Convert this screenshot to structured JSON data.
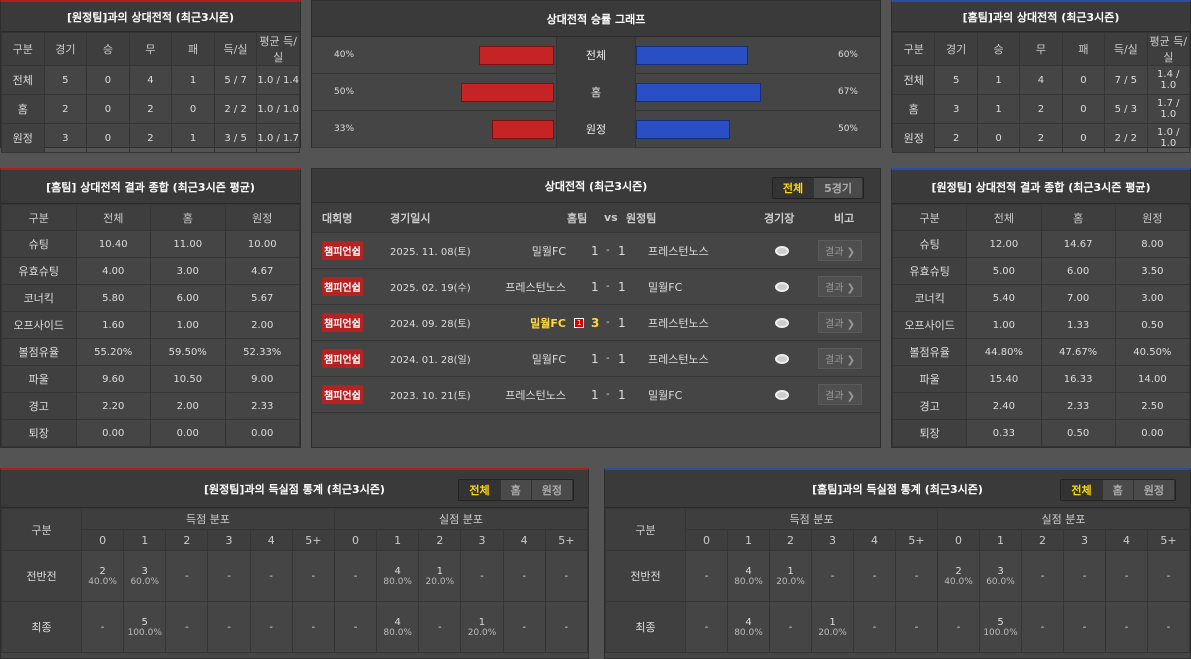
{
  "h2h_away": {
    "title": "[원정팀]과의 상대전적 (최근3시즌)",
    "headers": [
      "구분",
      "경기",
      "승",
      "무",
      "패",
      "득/실",
      "평균 득/실"
    ],
    "rows": [
      [
        "전체",
        "5",
        "0",
        "4",
        "1",
        "5 / 7",
        "1.0 / 1.4"
      ],
      [
        "홈",
        "2",
        "0",
        "2",
        "0",
        "2 / 2",
        "1.0 / 1.0"
      ],
      [
        "원정",
        "3",
        "0",
        "2",
        "1",
        "3 / 5",
        "1.0 / 1.7"
      ]
    ]
  },
  "h2h_home": {
    "title": "[홈팀]과의 상대전적 (최근3시즌)",
    "headers": [
      "구분",
      "경기",
      "승",
      "무",
      "패",
      "득/실",
      "평균 득/실"
    ],
    "rows": [
      [
        "전체",
        "5",
        "1",
        "4",
        "0",
        "7 / 5",
        "1.4 / 1.0"
      ],
      [
        "홈",
        "3",
        "1",
        "2",
        "0",
        "5 / 3",
        "1.7 / 1.0"
      ],
      [
        "원정",
        "2",
        "0",
        "2",
        "0",
        "2 / 2",
        "1.0 / 1.0"
      ]
    ]
  },
  "graph": {
    "title": "상대전적 승률 그래프",
    "rows": [
      {
        "label": "전체",
        "left": "40%",
        "right": "60%",
        "lv": 40,
        "rv": 60
      },
      {
        "label": "홈",
        "left": "50%",
        "right": "67%",
        "lv": 50,
        "rv": 67
      },
      {
        "label": "원정",
        "left": "33%",
        "right": "50%",
        "lv": 33,
        "rv": 50
      }
    ],
    "left_color": "#c42424",
    "right_color": "#2a4fc4"
  },
  "avg_home": {
    "title": "[홈팀] 상대전적 결과 종합 (최근3시즌 평균)",
    "headers": [
      "구분",
      "전체",
      "홈",
      "원정"
    ],
    "rows": [
      [
        "슈팅",
        "10.40",
        "11.00",
        "10.00"
      ],
      [
        "유효슈팅",
        "4.00",
        "3.00",
        "4.67"
      ],
      [
        "코너킥",
        "5.80",
        "6.00",
        "5.67"
      ],
      [
        "오프사이드",
        "1.60",
        "1.00",
        "2.00"
      ],
      [
        "볼점유율",
        "55.20%",
        "59.50%",
        "52.33%"
      ],
      [
        "파울",
        "9.60",
        "10.50",
        "9.00"
      ],
      [
        "경고",
        "2.20",
        "2.00",
        "2.33"
      ],
      [
        "퇴장",
        "0.00",
        "0.00",
        "0.00"
      ]
    ]
  },
  "avg_away": {
    "title": "[원정팀] 상대전적 결과 종합 (최근3시즌 평균)",
    "headers": [
      "구분",
      "전체",
      "홈",
      "원정"
    ],
    "rows": [
      [
        "슈팅",
        "12.00",
        "14.67",
        "8.00"
      ],
      [
        "유효슈팅",
        "5.00",
        "6.00",
        "3.50"
      ],
      [
        "코너킥",
        "5.40",
        "7.00",
        "3.00"
      ],
      [
        "오프사이드",
        "1.00",
        "1.33",
        "0.50"
      ],
      [
        "볼점유율",
        "44.80%",
        "47.67%",
        "40.50%"
      ],
      [
        "파울",
        "15.40",
        "16.33",
        "14.00"
      ],
      [
        "경고",
        "2.40",
        "2.33",
        "2.50"
      ],
      [
        "퇴장",
        "0.33",
        "0.50",
        "0.00"
      ]
    ]
  },
  "matches": {
    "title": "상대전적 (최근3시즌)",
    "tabs": [
      "전체",
      "5경기"
    ],
    "headers": [
      "대회명",
      "경기일시",
      "홈팀",
      "vs",
      "원정팀",
      "경기장",
      "비고"
    ],
    "button": "결과 ❯",
    "rows": [
      {
        "league": "챔피언쉽",
        "date": "2025. 11. 08(토)",
        "home": "밀월FC",
        "hs": "1",
        "as": "1",
        "away": "프레스턴노스",
        "card": "",
        "win": false
      },
      {
        "league": "챔피언쉽",
        "date": "2025. 02. 19(수)",
        "home": "프레스턴노스",
        "hs": "1",
        "as": "1",
        "away": "밀월FC",
        "card": "",
        "win": false
      },
      {
        "league": "챔피언쉽",
        "date": "2024. 09. 28(토)",
        "home": "밀월FC",
        "hs": "3",
        "as": "1",
        "away": "프레스턴노스",
        "card": "1",
        "win": true
      },
      {
        "league": "챔피언쉽",
        "date": "2024. 01. 28(일)",
        "home": "밀월FC",
        "hs": "1",
        "as": "1",
        "away": "프레스턴노스",
        "card": "",
        "win": false
      },
      {
        "league": "챔피언쉽",
        "date": "2023. 10. 21(토)",
        "home": "프레스턴노스",
        "hs": "1",
        "as": "1",
        "away": "밀월FC",
        "card": "",
        "win": false
      }
    ]
  },
  "goals_away": {
    "title": "[원정팀]과의 득실점 통계 (최근3시즌)",
    "tabs": [
      "전체",
      "홈",
      "원정"
    ],
    "label": "구분",
    "groups": [
      "득점 분포",
      "실점 분포"
    ],
    "cols": [
      "0",
      "1",
      "2",
      "3",
      "4",
      "5+",
      "0",
      "1",
      "2",
      "3",
      "4",
      "5+"
    ],
    "rows": [
      {
        "label": "전반전",
        "cells": [
          [
            "2",
            "40.0%"
          ],
          [
            "3",
            "60.0%"
          ],
          [
            "-"
          ],
          [
            "-"
          ],
          [
            "-"
          ],
          [
            "-"
          ],
          [
            "-"
          ],
          [
            "4",
            "80.0%"
          ],
          [
            "1",
            "20.0%"
          ],
          [
            "-"
          ],
          [
            "-"
          ],
          [
            "-"
          ]
        ]
      },
      {
        "label": "최종",
        "cells": [
          [
            "-"
          ],
          [
            "5",
            "100.0%"
          ],
          [
            "-"
          ],
          [
            "-"
          ],
          [
            "-"
          ],
          [
            "-"
          ],
          [
            "-"
          ],
          [
            "4",
            "80.0%"
          ],
          [
            "-"
          ],
          [
            "1",
            "20.0%"
          ],
          [
            "-"
          ],
          [
            "-"
          ]
        ]
      }
    ]
  },
  "goals_home": {
    "title": "[홈팀]과의 득실점 통계 (최근3시즌)",
    "tabs": [
      "전체",
      "홈",
      "원정"
    ],
    "label": "구분",
    "groups": [
      "득점 분포",
      "실점 분포"
    ],
    "cols": [
      "0",
      "1",
      "2",
      "3",
      "4",
      "5+",
      "0",
      "1",
      "2",
      "3",
      "4",
      "5+"
    ],
    "rows": [
      {
        "label": "전반전",
        "cells": [
          [
            "-"
          ],
          [
            "4",
            "80.0%"
          ],
          [
            "1",
            "20.0%"
          ],
          [
            "-"
          ],
          [
            "-"
          ],
          [
            "-"
          ],
          [
            "2",
            "40.0%"
          ],
          [
            "3",
            "60.0%"
          ],
          [
            "-"
          ],
          [
            "-"
          ],
          [
            "-"
          ],
          [
            "-"
          ]
        ]
      },
      {
        "label": "최종",
        "cells": [
          [
            "-"
          ],
          [
            "4",
            "80.0%"
          ],
          [
            "-"
          ],
          [
            "1",
            "20.0%"
          ],
          [
            "-"
          ],
          [
            "-"
          ],
          [
            "-"
          ],
          [
            "5",
            "100.0%"
          ],
          [
            "-"
          ],
          [
            "-"
          ],
          [
            "-"
          ],
          [
            "-"
          ]
        ]
      }
    ]
  }
}
